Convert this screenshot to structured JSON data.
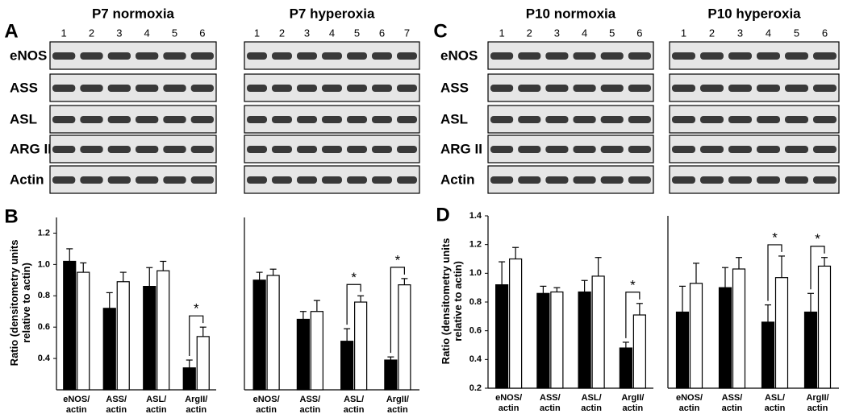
{
  "blots": [
    {
      "panel": "A",
      "row_labels": [
        "eNOS",
        "ASS",
        "ASL",
        "ARG II",
        "Actin"
      ],
      "groups": [
        {
          "title": "P7 normoxia",
          "lanes": [
            "1",
            "2",
            "3",
            "4",
            "5",
            "6"
          ]
        },
        {
          "title": "P7 hyperoxia",
          "lanes": [
            "1",
            "2",
            "3",
            "4",
            "5",
            "6",
            "7"
          ]
        }
      ]
    },
    {
      "panel": "C",
      "row_labels": [
        "eNOS",
        "ASS",
        "ASL",
        "ARG II",
        "Actin"
      ],
      "groups": [
        {
          "title": "P10 normoxia",
          "lanes": [
            "1",
            "2",
            "3",
            "4",
            "5",
            "6"
          ]
        },
        {
          "title": "P10 hyperoxia",
          "lanes": [
            "1",
            "2",
            "3",
            "4",
            "5",
            "6"
          ]
        }
      ]
    }
  ],
  "chart_data": [
    {
      "type": "bar",
      "panel": "B",
      "y_label": "Ratio (densitometry units relative to actin)",
      "categories": [
        "eNOS/ actin",
        "ASS/ actin",
        "ASL/ actin",
        "ArgII/ actin"
      ],
      "series": [
        {
          "color": "#000000",
          "values": [
            1.02,
            0.72,
            0.86,
            0.34
          ],
          "errors": [
            0.08,
            0.1,
            0.12,
            0.05
          ]
        },
        {
          "color": "#ffffff",
          "values": [
            0.95,
            0.89,
            0.96,
            0.54
          ],
          "errors": [
            0.06,
            0.06,
            0.06,
            0.06
          ]
        }
      ],
      "ylim": [
        0.2,
        1.3
      ],
      "yticks": [
        0.4,
        0.6,
        0.8,
        {
          "value": 1,
          "label": "1.0"
        },
        1.2
      ],
      "significance": {
        "label": "*",
        "categories": [
          3
        ]
      }
    },
    {
      "type": "bar",
      "categories": [
        "eNOS/ actin",
        "ASS/ actin",
        "ASL/ actin",
        "ArgII/ actin"
      ],
      "series": [
        {
          "color": "#000000",
          "values": [
            0.9,
            0.65,
            0.51,
            0.39
          ],
          "errors": [
            0.05,
            0.05,
            0.08,
            0.02
          ]
        },
        {
          "color": "#ffffff",
          "values": [
            0.93,
            0.7,
            0.76,
            0.87
          ],
          "errors": [
            0.04,
            0.07,
            0.04,
            0.04
          ]
        }
      ],
      "ylim": [
        0.2,
        1.3
      ],
      "significance": {
        "label": "*",
        "categories": [
          2,
          3
        ]
      }
    },
    {
      "type": "bar",
      "panel": "D",
      "y_label": "Ratio (densitometry units relative to actin)",
      "categories": [
        "eNOS/ actin",
        "ASS/ actin",
        "ASL/ actin",
        "ArgII/ actin"
      ],
      "series": [
        {
          "color": "#000000",
          "values": [
            0.92,
            0.86,
            0.87,
            0.48
          ],
          "errors": [
            0.16,
            0.05,
            0.08,
            0.04
          ]
        },
        {
          "color": "#ffffff",
          "values": [
            1.1,
            0.87,
            0.98,
            0.71
          ],
          "errors": [
            0.08,
            0.03,
            0.13,
            0.08
          ]
        }
      ],
      "ylim": [
        0.2,
        1.4
      ],
      "yticks": [
        0.2,
        0.4,
        0.6,
        0.8,
        {
          "value": 1,
          "label": "1.0"
        },
        1.2,
        1.4
      ],
      "significance": {
        "label": "*",
        "categories": [
          3
        ]
      }
    },
    {
      "type": "bar",
      "categories": [
        "eNOS/ actin",
        "ASS/ actin",
        "ASL/ actin",
        "ArgII/ actin"
      ],
      "series": [
        {
          "color": "#000000",
          "values": [
            0.73,
            0.9,
            0.66,
            0.73
          ],
          "errors": [
            0.18,
            0.14,
            0.12,
            0.13
          ]
        },
        {
          "color": "#ffffff",
          "values": [
            0.93,
            1.03,
            0.97,
            1.05
          ],
          "errors": [
            0.14,
            0.08,
            0.15,
            0.06
          ]
        }
      ],
      "ylim": [
        0.2,
        1.4
      ],
      "significance": {
        "label": "*",
        "categories": [
          2,
          3
        ]
      }
    }
  ]
}
